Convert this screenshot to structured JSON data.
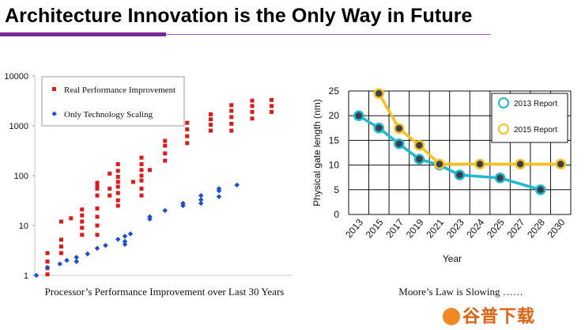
{
  "header": {
    "title": "Architecture Innovation is the Only Way in Future"
  },
  "watermark": {
    "text": "谷普下载"
  },
  "chart_data": [
    {
      "type": "scatter",
      "title": "",
      "caption": "Processor’s Performance Improvement over Last 30 Years",
      "xlabel": "",
      "ylabel": "",
      "yscale": "log",
      "ylim": [
        1,
        10000
      ],
      "yticks": [
        "10000",
        "1000",
        "100",
        "10",
        "1"
      ],
      "grid": false,
      "legend_position": "top-left",
      "colors": {
        "real": "#e01818",
        "tech": "#1c4fd0"
      },
      "series": [
        {
          "name": "Real Performance Improvement",
          "marker": "square",
          "points": [
            [
              2,
              1.05
            ],
            [
              2,
              1.4
            ],
            [
              2,
              1.9
            ],
            [
              2,
              2.8
            ],
            [
              3,
              2.8
            ],
            [
              3,
              3.8
            ],
            [
              3,
              5.2
            ],
            [
              3,
              12
            ],
            [
              3.7,
              14
            ],
            [
              4.5,
              6.5
            ],
            [
              4.5,
              9
            ],
            [
              4.5,
              12
            ],
            [
              4.5,
              16
            ],
            [
              4.5,
              21
            ],
            [
              5.6,
              6.5
            ],
            [
              5.6,
              10
            ],
            [
              5.6,
              15
            ],
            [
              5.6,
              22
            ],
            [
              5.6,
              40
            ],
            [
              5.6,
              55
            ],
            [
              5.6,
              65
            ],
            [
              5.6,
              72
            ],
            [
              6.5,
              40
            ],
            [
              6.5,
              55
            ],
            [
              6.5,
              110
            ],
            [
              7.1,
              25
            ],
            [
              7.1,
              32
            ],
            [
              7.1,
              45
            ],
            [
              7.1,
              60
            ],
            [
              7.1,
              75
            ],
            [
              7.1,
              95
            ],
            [
              7.1,
              125
            ],
            [
              7.1,
              170
            ],
            [
              8.2,
              75
            ],
            [
              8.8,
              40
            ],
            [
              8.8,
              55
            ],
            [
              8.8,
              80
            ],
            [
              8.8,
              100
            ],
            [
              8.8,
              130
            ],
            [
              8.8,
              170
            ],
            [
              8.8,
              230
            ],
            [
              9.4,
              130
            ],
            [
              10.5,
              200
            ],
            [
              10.5,
              280
            ],
            [
              10.5,
              400
            ],
            [
              10.5,
              500
            ],
            [
              12.1,
              450
            ],
            [
              12.1,
              620
            ],
            [
              12.1,
              850
            ],
            [
              12.1,
              1150
            ],
            [
              13.8,
              800
            ],
            [
              13.8,
              1050
            ],
            [
              13.8,
              1350
            ],
            [
              13.8,
              1700
            ],
            [
              15.3,
              800
            ],
            [
              15.3,
              1100
            ],
            [
              15.3,
              1500
            ],
            [
              15.3,
              2000
            ],
            [
              15.3,
              2600
            ],
            [
              16.8,
              1400
            ],
            [
              16.8,
              1900
            ],
            [
              16.8,
              2500
            ],
            [
              16.8,
              3200
            ],
            [
              18.2,
              1900
            ],
            [
              18.2,
              2500
            ],
            [
              18.2,
              3300
            ]
          ]
        },
        {
          "name": "Only Technology Scaling",
          "marker": "diamond",
          "points": [
            [
              1.2,
              1
            ],
            [
              2,
              1.45
            ],
            [
              2.9,
              1.7
            ],
            [
              3.4,
              2
            ],
            [
              4.1,
              1.9
            ],
            [
              4.1,
              2.3
            ],
            [
              4.9,
              2.7
            ],
            [
              5.6,
              3.5
            ],
            [
              6.2,
              4
            ],
            [
              7.1,
              5.3
            ],
            [
              7.6,
              4.2
            ],
            [
              7.6,
              4.8
            ],
            [
              7.6,
              6.1
            ],
            [
              8,
              6.8
            ],
            [
              9.4,
              13.5
            ],
            [
              9.4,
              15
            ],
            [
              10.5,
              20
            ],
            [
              11.8,
              25
            ],
            [
              11.8,
              28
            ],
            [
              13.1,
              28
            ],
            [
              13.1,
              33
            ],
            [
              13.1,
              40
            ],
            [
              14.4,
              38
            ],
            [
              14.4,
              50
            ],
            [
              14.4,
              55
            ],
            [
              15.7,
              65
            ]
          ]
        }
      ]
    },
    {
      "type": "line",
      "title": "",
      "caption": "Moore’s Law is Slowing ……",
      "xlabel": "Year",
      "ylabel": "Physical gate length (nm)",
      "categories": [
        "2013",
        "2015",
        "2017",
        "2019",
        "2021",
        "2023",
        "2024",
        "2025",
        "2027",
        "2028",
        "2030"
      ],
      "ylim": [
        0,
        25
      ],
      "yticks": [
        0,
        5,
        10,
        15,
        20,
        25
      ],
      "grid": true,
      "legend_position": "top-right",
      "series": [
        {
          "name": "2013 Report",
          "color": "#1fb8cf",
          "x": [
            0,
            1,
            2,
            3,
            4,
            5,
            7,
            9
          ],
          "values": [
            20,
            17.5,
            14.3,
            11.2,
            10,
            8,
            7.4,
            5
          ]
        },
        {
          "name": "2015 Report",
          "color": "#f5c21b",
          "x": [
            1,
            2,
            3,
            4,
            6,
            8,
            10
          ],
          "values": [
            24.5,
            17.4,
            14,
            10.2,
            10.2,
            10.2,
            10.2
          ]
        }
      ]
    }
  ]
}
